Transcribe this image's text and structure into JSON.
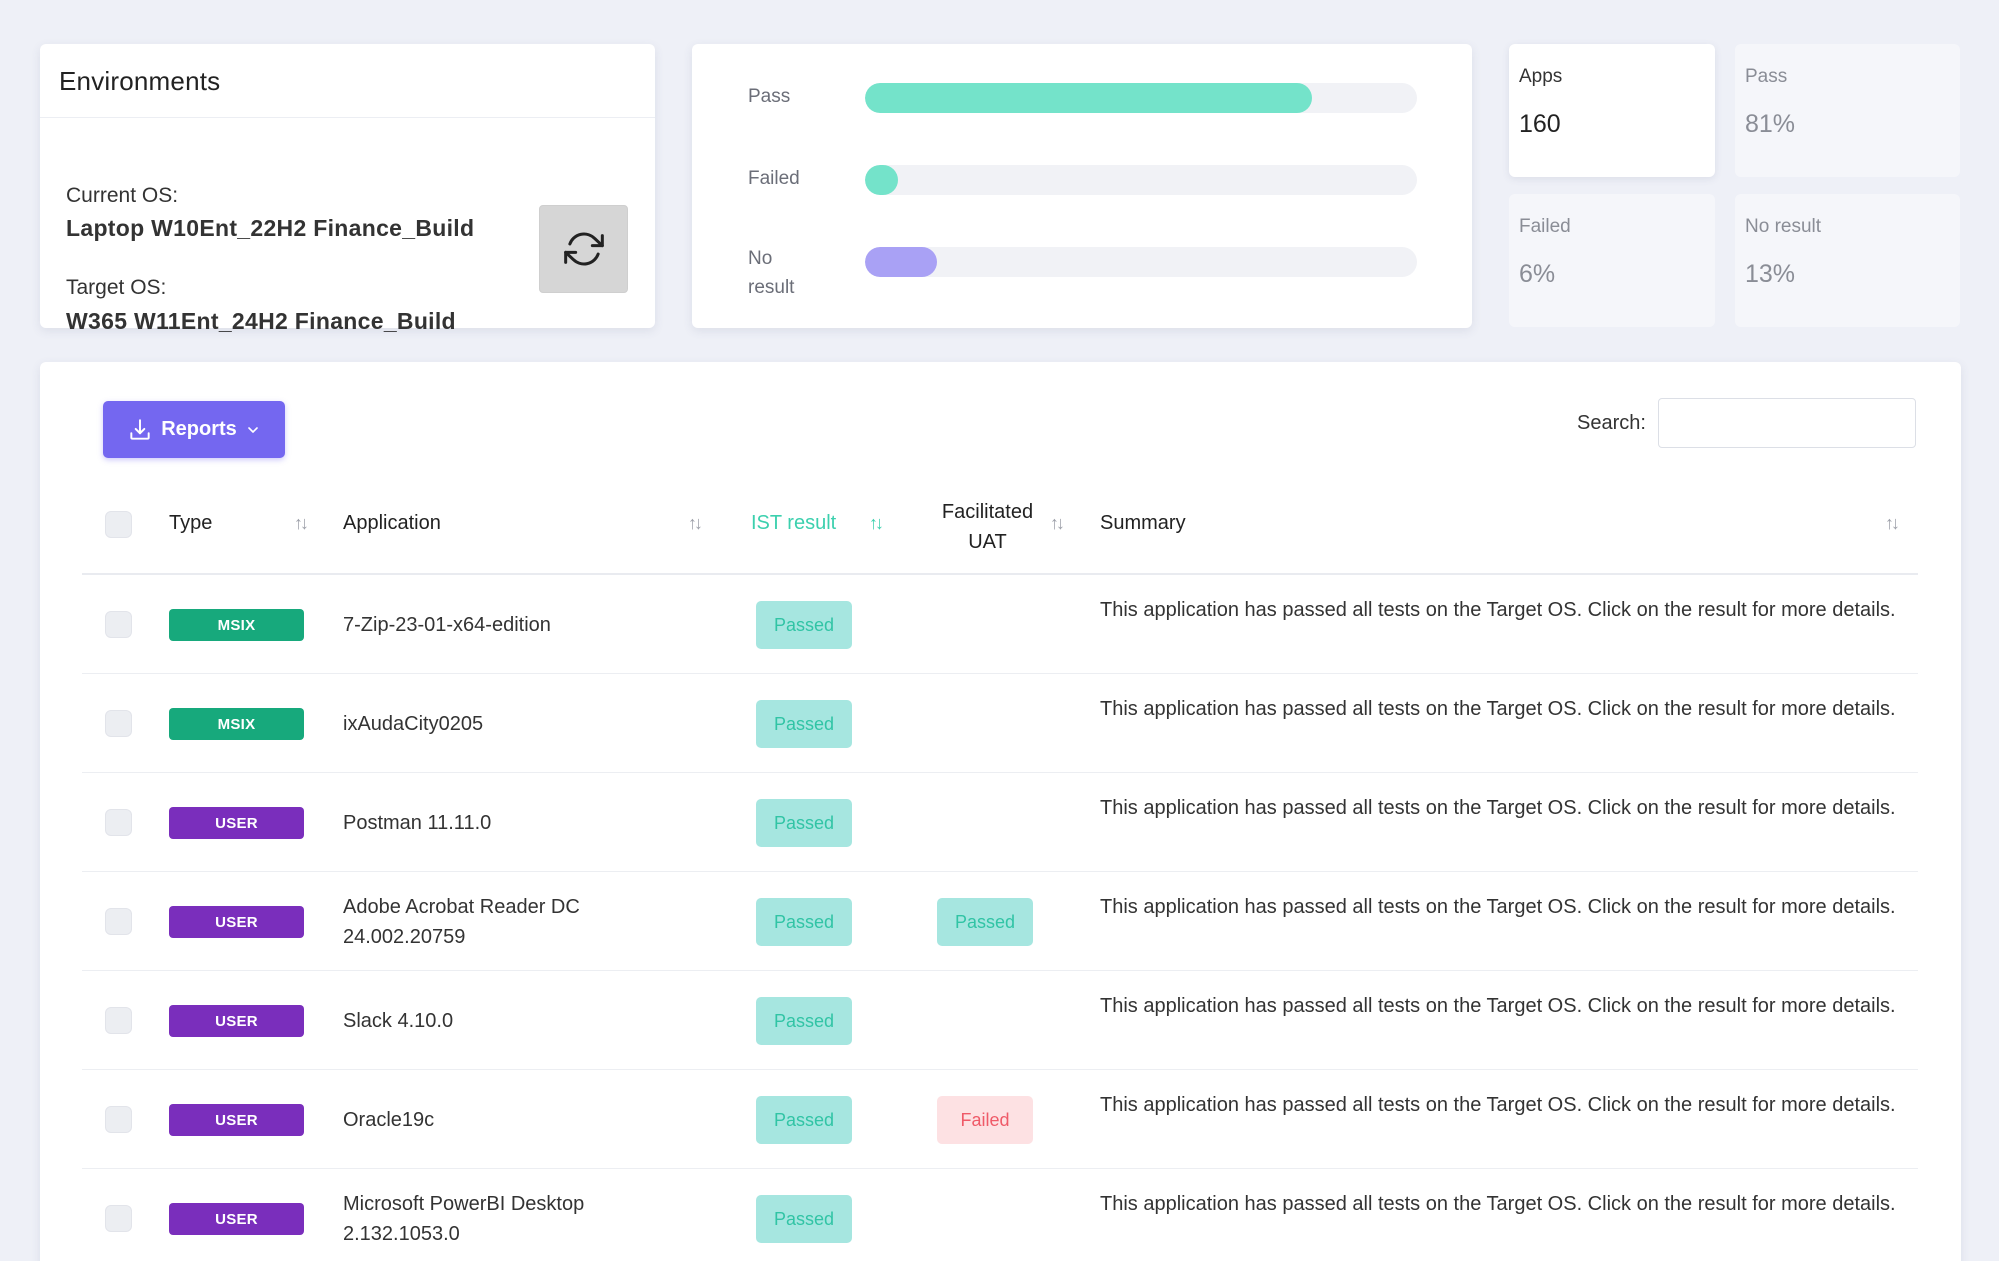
{
  "environments": {
    "title": "Environments",
    "current_label": "Current OS:",
    "current_value": "Laptop W10Ent_22H2 Finance_Build",
    "target_label": "Target OS:",
    "target_value": "W365 W11Ent_24H2 Finance_Build"
  },
  "progress": [
    {
      "label": "Pass",
      "fraction": 0.81,
      "color": "#74e3ca"
    },
    {
      "label": "Failed",
      "fraction": 0.06,
      "color": "#74e3ca"
    },
    {
      "label": "No result",
      "fraction": 0.13,
      "color": "#a9a1f5"
    }
  ],
  "stats": [
    {
      "label": "Apps",
      "value": "160"
    },
    {
      "label": "Pass",
      "value": "81%"
    },
    {
      "label": "Failed",
      "value": "6%"
    },
    {
      "label": "No result",
      "value": "13%"
    }
  ],
  "toolbar": {
    "reports_label": "Reports",
    "search_label": "Search:",
    "search_value": "",
    "search_placeholder": ""
  },
  "table": {
    "headers": {
      "type": "Type",
      "application": "Application",
      "ist_result": "IST result",
      "uat_line1": "Facilitated",
      "uat_line2": "UAT",
      "summary": "Summary"
    },
    "rows": [
      {
        "type": "MSIX",
        "kind": "msix",
        "app": "7-Zip-23-01-x64-edition",
        "ist": "Passed",
        "uat": "",
        "summary": "This application has passed all tests on the Target OS. Click on the result for more details."
      },
      {
        "type": "MSIX",
        "kind": "msix",
        "app": "ixAudaCity0205",
        "ist": "Passed",
        "uat": "",
        "summary": "This application has passed all tests on the Target OS. Click on the result for more details."
      },
      {
        "type": "USER",
        "kind": "user",
        "app": "Postman 11.11.0",
        "ist": "Passed",
        "uat": "",
        "summary": "This application has passed all tests on the Target OS. Click on the result for more details."
      },
      {
        "type": "USER",
        "kind": "user",
        "app": "Adobe Acrobat Reader DC 24.002.20759",
        "ist": "Passed",
        "uat": "Passed",
        "summary": "This application has passed all tests on the Target OS. Click on the result for more details."
      },
      {
        "type": "USER",
        "kind": "user",
        "app": "Slack 4.10.0",
        "ist": "Passed",
        "uat": "",
        "summary": "This application has passed all tests on the Target OS. Click on the result for more details."
      },
      {
        "type": "USER",
        "kind": "user",
        "app": "Oracle19c",
        "ist": "Passed",
        "uat": "Failed",
        "summary": "This application has passed all tests on the Target OS. Click on the result for more details."
      },
      {
        "type": "USER",
        "kind": "user",
        "app": "Microsoft PowerBI Desktop 2.132.1053.0",
        "ist": "Passed",
        "uat": "",
        "summary": "This application has passed all tests on the Target OS. Click on the result for more details."
      }
    ]
  },
  "icons": {
    "refresh": "refresh-icon",
    "download": "download-icon",
    "chevron": "chevron-down-icon",
    "sort": "sort-icon"
  }
}
